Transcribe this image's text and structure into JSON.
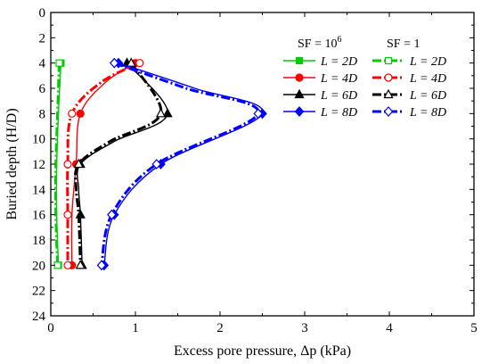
{
  "chart_data": {
    "type": "line",
    "title": "",
    "xlabel": "Excess pore pressure, Δp (kPa)",
    "ylabel": "Buried depth (H/D)",
    "xlim": [
      0,
      5
    ],
    "ylim": [
      24,
      0
    ],
    "y_inverted": true,
    "x_axis_position": "top-to-bottom depth, values on bottom axis",
    "xticks": [
      "0",
      "1",
      "2",
      "3",
      "4",
      "5"
    ],
    "yticks": [
      "0",
      "2",
      "4",
      "6",
      "8",
      "10",
      "12",
      "14",
      "16",
      "18",
      "20",
      "22",
      "24"
    ],
    "grid": false,
    "legend_placement": "top-right",
    "legend_groups": [
      {
        "heading_base": "SF = 10",
        "heading_exp": "6",
        "line_style": "solid",
        "marker_fill": "filled"
      },
      {
        "heading_base": "SF = 1",
        "heading_exp": "",
        "line_style": "dash-dot",
        "marker_fill": "open"
      }
    ],
    "series": [
      {
        "name": "L = 2D",
        "group": "SF = 10^6",
        "color": "#00cc00",
        "marker": "square",
        "line": "solid",
        "points": [
          [
            0.12,
            4
          ],
          [
            0.09,
            8
          ],
          [
            0.07,
            12
          ],
          [
            0.07,
            16
          ],
          [
            0.09,
            20
          ]
        ],
        "markers_at": [
          [
            0.12,
            4
          ],
          [
            0.09,
            20
          ]
        ]
      },
      {
        "name": "L = 2D",
        "group": "SF = 1",
        "color": "#00cc00",
        "marker": "square",
        "line": "dashdot",
        "points": [
          [
            0.1,
            4
          ],
          [
            0.08,
            8
          ],
          [
            0.06,
            12
          ],
          [
            0.06,
            16
          ],
          [
            0.08,
            20
          ]
        ],
        "markers_at": [
          [
            0.1,
            4
          ],
          [
            0.08,
            20
          ]
        ]
      },
      {
        "name": "L = 4D",
        "group": "SF = 10^6",
        "color": "#ff0000",
        "marker": "circle",
        "line": "solid",
        "points": [
          [
            1.0,
            4
          ],
          [
            0.65,
            5.5
          ],
          [
            0.35,
            8
          ],
          [
            0.3,
            12
          ],
          [
            0.25,
            16
          ],
          [
            0.25,
            20
          ]
        ],
        "markers_at": [
          [
            1.0,
            4
          ],
          [
            0.35,
            8
          ],
          [
            0.3,
            12
          ],
          [
            0.25,
            20
          ]
        ]
      },
      {
        "name": "L = 4D",
        "group": "SF = 1",
        "color": "#ff0000",
        "marker": "circle",
        "line": "dashdot",
        "points": [
          [
            1.05,
            4
          ],
          [
            0.6,
            5.5
          ],
          [
            0.25,
            8
          ],
          [
            0.2,
            12
          ],
          [
            0.2,
            16
          ],
          [
            0.2,
            20
          ]
        ],
        "markers_at": [
          [
            1.05,
            4
          ],
          [
            0.25,
            8
          ],
          [
            0.2,
            12
          ],
          [
            0.2,
            16
          ],
          [
            0.2,
            20
          ]
        ]
      },
      {
        "name": "L = 6D",
        "group": "SF = 10^6",
        "color": "#000000",
        "marker": "triangle",
        "line": "solid",
        "points": [
          [
            0.9,
            4
          ],
          [
            1.38,
            8
          ],
          [
            0.75,
            10.2
          ],
          [
            0.35,
            12
          ],
          [
            0.33,
            14
          ],
          [
            0.35,
            16
          ],
          [
            0.37,
            20
          ]
        ],
        "markers_at": [
          [
            0.9,
            4
          ],
          [
            1.38,
            8
          ],
          [
            0.35,
            12
          ],
          [
            0.35,
            16
          ],
          [
            0.37,
            20
          ]
        ]
      },
      {
        "name": "L = 6D",
        "group": "SF = 1",
        "color": "#000000",
        "marker": "triangle",
        "line": "dashdot",
        "points": [
          [
            0.95,
            4
          ],
          [
            1.3,
            8
          ],
          [
            0.7,
            10.2
          ],
          [
            0.33,
            12
          ],
          [
            0.3,
            14
          ],
          [
            0.33,
            16
          ],
          [
            0.35,
            20
          ]
        ],
        "markers_at": [
          [
            0.95,
            4
          ],
          [
            1.3,
            8
          ],
          [
            0.33,
            12
          ],
          [
            0.35,
            20
          ]
        ]
      },
      {
        "name": "L = 8D",
        "group": "SF = 10^6",
        "color": "#0000ff",
        "marker": "diamond",
        "line": "solid",
        "points": [
          [
            0.8,
            4
          ],
          [
            1.7,
            6
          ],
          [
            2.5,
            8
          ],
          [
            1.3,
            12
          ],
          [
            0.75,
            16
          ],
          [
            0.63,
            20
          ]
        ],
        "markers_at": [
          [
            0.8,
            4
          ],
          [
            2.5,
            8
          ],
          [
            1.3,
            12
          ],
          [
            0.75,
            16
          ],
          [
            0.63,
            20
          ]
        ]
      },
      {
        "name": "L = 8D",
        "group": "SF = 1",
        "color": "#0000ff",
        "marker": "diamond",
        "line": "dashdot",
        "points": [
          [
            0.75,
            4
          ],
          [
            1.6,
            6
          ],
          [
            2.45,
            8
          ],
          [
            1.25,
            12
          ],
          [
            0.72,
            16
          ],
          [
            0.6,
            20
          ]
        ],
        "markers_at": [
          [
            0.75,
            4
          ],
          [
            2.45,
            8
          ],
          [
            1.25,
            12
          ],
          [
            0.72,
            16
          ],
          [
            0.6,
            20
          ]
        ]
      }
    ]
  }
}
